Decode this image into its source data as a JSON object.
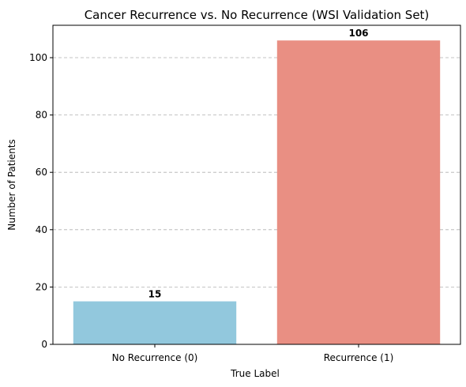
{
  "chart_data": {
    "type": "bar",
    "title": "Cancer Recurrence vs. No Recurrence (WSI Validation Set)",
    "xlabel": "True Label",
    "ylabel": "Number of Patients",
    "categories": [
      "No Recurrence (0)",
      "Recurrence (1)"
    ],
    "values": [
      15,
      106
    ],
    "data_labels": [
      "15",
      "106"
    ],
    "colors": [
      "#92c8dd",
      "#e98f83"
    ],
    "ylim": [
      0,
      111.3
    ],
    "yticks": [
      0,
      20,
      40,
      60,
      80,
      100
    ],
    "grid": "y-dashed"
  }
}
